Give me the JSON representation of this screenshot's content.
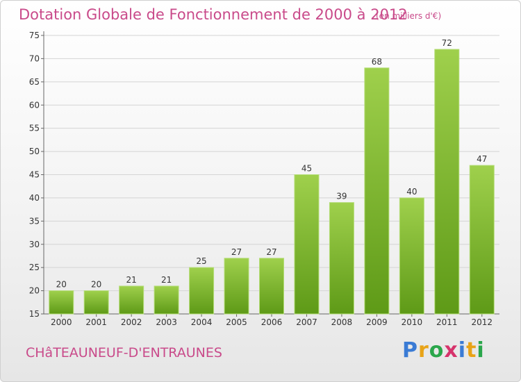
{
  "header": {
    "title": "Dotation Globale de Fonctionnement de 2000 à 2012",
    "subtitle": "(en milliers d'€)"
  },
  "footer": {
    "commune": "CHâTEAUNEUF-D'ENTRAUNES",
    "logo_text": "Proxiti",
    "logo_letters": [
      "P",
      "r",
      "o",
      "x",
      "i",
      "t",
      "i"
    ],
    "logo_colors": [
      "#3a7bd5",
      "#e8a317",
      "#2aa64b",
      "#d6336c",
      "#3a7bd5",
      "#e8a317",
      "#2aa64b"
    ]
  },
  "chart_data": {
    "type": "bar",
    "title": "Dotation Globale de Fonctionnement de 2000 à 2012",
    "subtitle": "(en milliers d'€)",
    "xlabel": "",
    "ylabel": "",
    "categories": [
      "2000",
      "2001",
      "2002",
      "2003",
      "2004",
      "2005",
      "2006",
      "2007",
      "2008",
      "2009",
      "2010",
      "2011",
      "2012"
    ],
    "values": [
      20,
      20,
      21,
      21,
      25,
      27,
      27,
      45,
      39,
      68,
      40,
      72,
      47
    ],
    "ylim": [
      15,
      75
    ],
    "yticks": [
      15,
      20,
      25,
      30,
      35,
      40,
      45,
      50,
      55,
      60,
      65,
      70,
      75
    ],
    "grid": true,
    "bar_color_top": "#9fd04c",
    "bar_color_bottom": "#5e9a17"
  }
}
